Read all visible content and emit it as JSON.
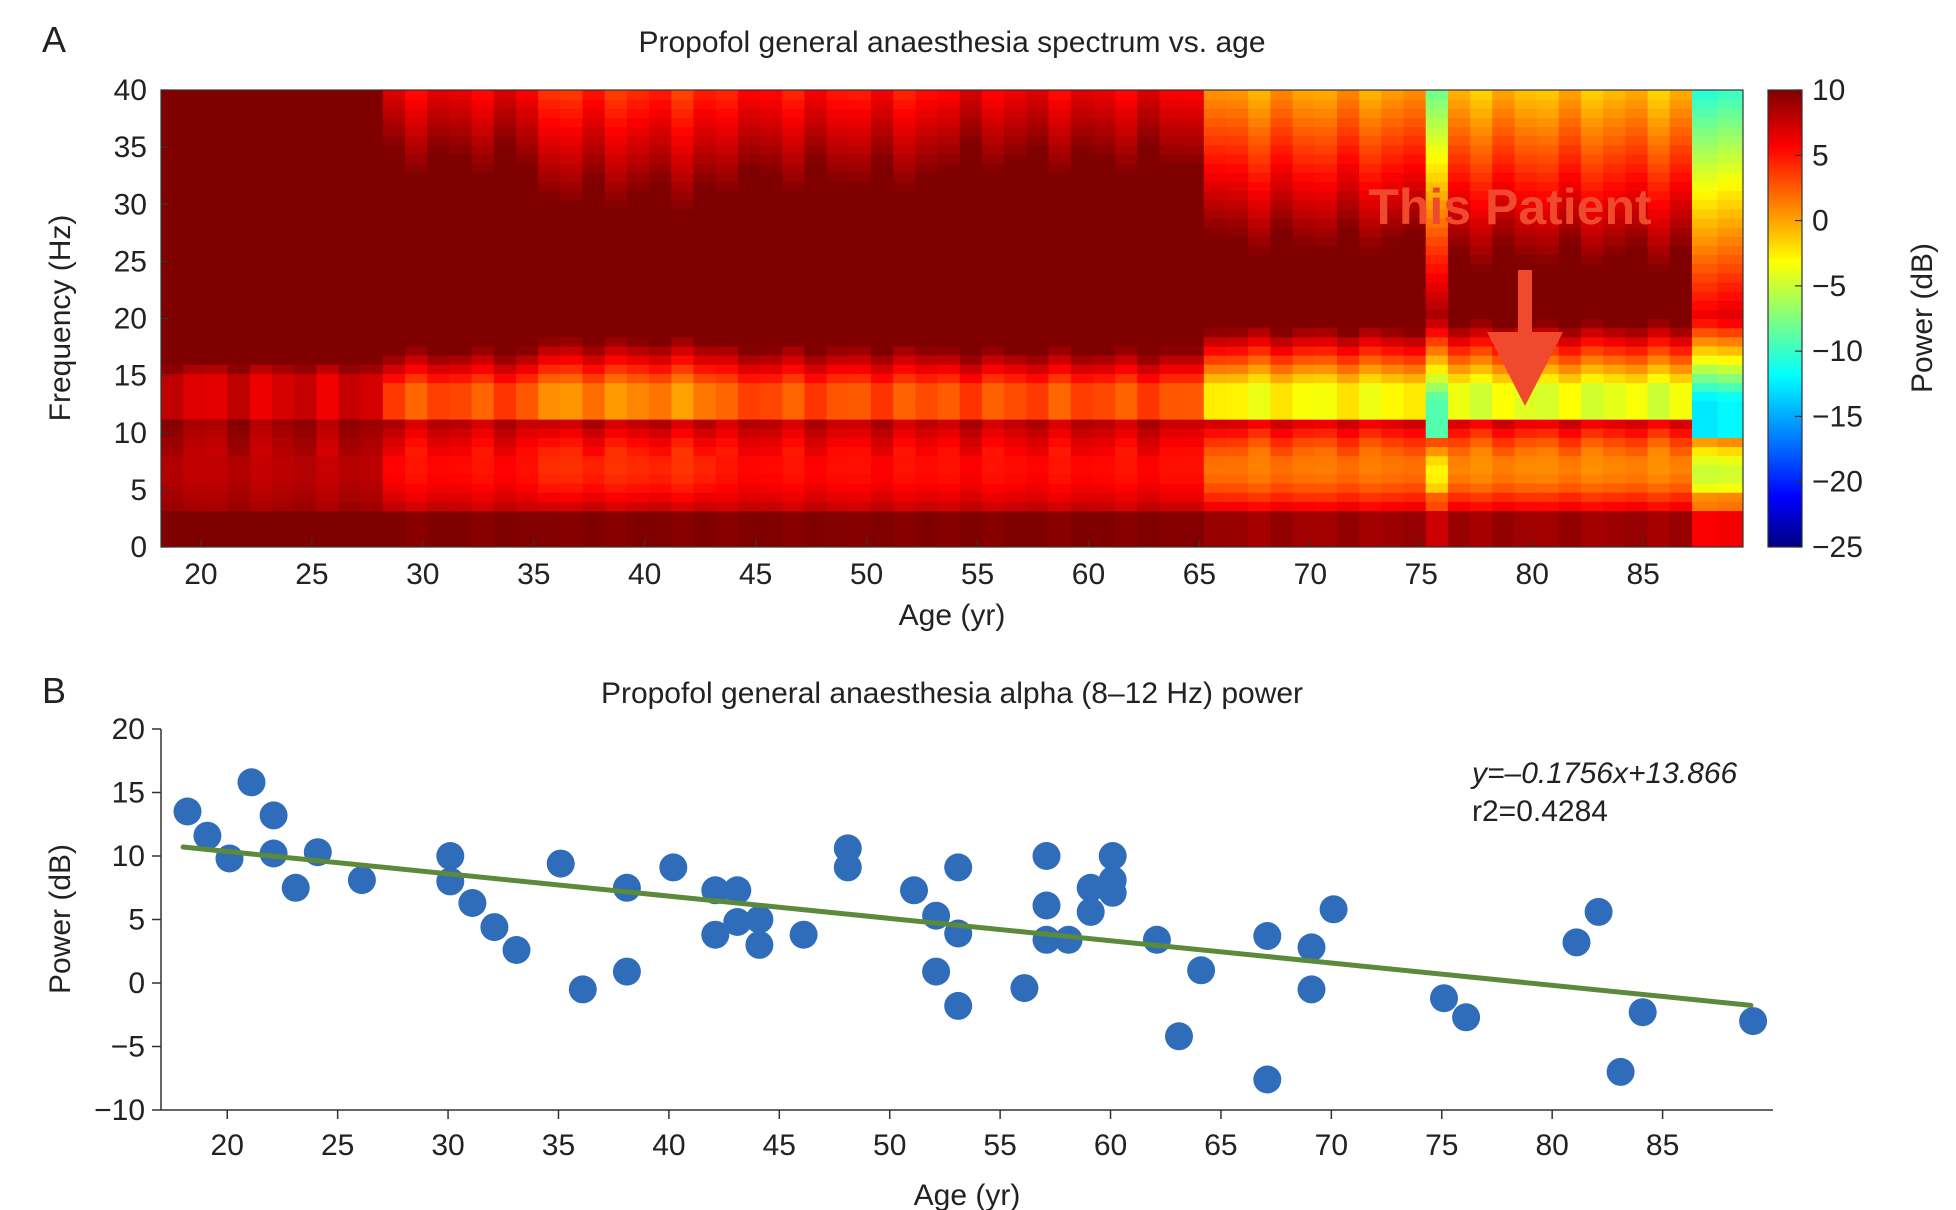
{
  "colors": {
    "patient_annotation": "#f04a2e",
    "scatter_points": "#2f6dbb",
    "fit_line": "#5a8a3a",
    "axis": "#222222"
  },
  "chart_data": [
    {
      "panel": "A",
      "type": "heatmap",
      "title": "Propofol general anaesthesia spectrum vs. age",
      "xlabel": "Age (yr)",
      "ylabel": "Frequency (Hz)",
      "colorbar_label": "Power (dB)",
      "xlim": [
        18.2,
        89.5
      ],
      "ylim": [
        0,
        40
      ],
      "clim": [
        -25,
        10
      ],
      "xticks": [
        20,
        25,
        30,
        35,
        40,
        45,
        50,
        55,
        60,
        65,
        70,
        75,
        80,
        85
      ],
      "yticks": [
        0,
        5,
        10,
        15,
        20,
        25,
        30,
        35,
        40
      ],
      "colorbar_ticks": [
        10,
        5,
        0,
        -5,
        -10,
        -15,
        -20,
        -25
      ],
      "colormap": "jet",
      "annotation": {
        "text": "This Patient",
        "age": 79.5
      },
      "segments": [
        {
          "x0": 18.2,
          "x1": 28.2,
          "low": 9,
          "alpha": 7,
          "alpha_f": 11,
          "alpha_w": 4,
          "top": 27,
          "slope": 0.55,
          "floor": -18
        },
        {
          "x0": 28.2,
          "x1": 35.2,
          "low": 8,
          "alpha": 3,
          "alpha_f": 11,
          "alpha_w": 3,
          "top": 19,
          "slope": 0.65,
          "floor": -20
        },
        {
          "x0": 35.2,
          "x1": 43.2,
          "low": 8,
          "alpha": 1,
          "alpha_f": 11,
          "alpha_w": 3,
          "top": 17,
          "slope": 0.65,
          "floor": -20
        },
        {
          "x0": 43.2,
          "x1": 53.2,
          "low": 8,
          "alpha": 3,
          "alpha_f": 11,
          "alpha_w": 3,
          "top": 18,
          "slope": 0.65,
          "floor": -20
        },
        {
          "x0": 53.2,
          "x1": 65.2,
          "low": 8,
          "alpha": 3,
          "alpha_f": 11,
          "alpha_w": 3,
          "top": 19,
          "slope": 0.65,
          "floor": -20
        },
        {
          "x0": 65.2,
          "x1": 75.2,
          "low": 7,
          "alpha": -3,
          "alpha_f": 11,
          "alpha_w": 3,
          "top": 15,
          "slope": 0.75,
          "floor": -22
        },
        {
          "x0": 75.2,
          "x1": 76.2,
          "low": 5,
          "alpha": -10,
          "alpha_f": 10,
          "alpha_w": 3,
          "top": 8,
          "slope": 0.85,
          "floor": -24
        },
        {
          "x0": 76.2,
          "x1": 87.2,
          "low": 7,
          "alpha": -4,
          "alpha_f": 11,
          "alpha_w": 3,
          "top": 14,
          "slope": 0.75,
          "floor": -22
        },
        {
          "x0": 87.2,
          "x1": 89.5,
          "low": 4,
          "alpha": -12,
          "alpha_f": 10,
          "alpha_w": 3,
          "top": 7,
          "slope": 0.85,
          "floor": -24
        }
      ]
    },
    {
      "panel": "B",
      "type": "scatter",
      "title": "Propofol general anaesthesia alpha (8–12 Hz) power",
      "xlabel": "Age (yr)",
      "ylabel": "Power (dB)",
      "xlim": [
        17,
        90
      ],
      "ylim": [
        -10,
        20
      ],
      "xticks": [
        20,
        25,
        30,
        35,
        40,
        45,
        50,
        55,
        60,
        65,
        70,
        75,
        80,
        85
      ],
      "yticks": [
        20,
        15,
        10,
        5,
        0,
        -5,
        -10
      ],
      "equation": "y=–0.1756x+13.866",
      "r_squared": "r2=0.4284",
      "fit": {
        "slope": -0.1756,
        "intercept": 13.866,
        "x_range": [
          18,
          89
        ]
      },
      "points": [
        [
          18.2,
          13.5
        ],
        [
          19.1,
          11.6
        ],
        [
          20.1,
          9.8
        ],
        [
          21.1,
          15.8
        ],
        [
          22.1,
          13.2
        ],
        [
          22.1,
          10.2
        ],
        [
          23.1,
          7.5
        ],
        [
          24.1,
          10.3
        ],
        [
          26.1,
          8.1
        ],
        [
          30.1,
          10.0
        ],
        [
          30.1,
          8.0
        ],
        [
          31.1,
          6.3
        ],
        [
          32.1,
          4.4
        ],
        [
          33.1,
          2.6
        ],
        [
          35.1,
          9.4
        ],
        [
          36.1,
          -0.5
        ],
        [
          38.1,
          7.5
        ],
        [
          38.1,
          0.9
        ],
        [
          40.2,
          9.1
        ],
        [
          42.1,
          7.3
        ],
        [
          42.1,
          3.8
        ],
        [
          43.1,
          7.3
        ],
        [
          43.1,
          4.8
        ],
        [
          44.1,
          5.0
        ],
        [
          44.1,
          3.0
        ],
        [
          46.1,
          3.8
        ],
        [
          48.1,
          10.6
        ],
        [
          48.1,
          9.1
        ],
        [
          51.1,
          7.3
        ],
        [
          52.1,
          5.3
        ],
        [
          52.1,
          0.9
        ],
        [
          53.1,
          9.1
        ],
        [
          53.1,
          3.9
        ],
        [
          53.1,
          -1.8
        ],
        [
          56.1,
          -0.4
        ],
        [
          57.1,
          10.0
        ],
        [
          57.1,
          6.1
        ],
        [
          57.1,
          3.4
        ],
        [
          58.1,
          3.4
        ],
        [
          59.1,
          7.5
        ],
        [
          59.1,
          5.6
        ],
        [
          60.1,
          10.0
        ],
        [
          60.1,
          8.1
        ],
        [
          60.1,
          7.1
        ],
        [
          62.1,
          3.4
        ],
        [
          63.1,
          -4.2
        ],
        [
          64.1,
          1.0
        ],
        [
          67.1,
          3.7
        ],
        [
          67.1,
          -7.6
        ],
        [
          69.1,
          2.8
        ],
        [
          69.1,
          -0.5
        ],
        [
          70.1,
          5.8
        ],
        [
          75.1,
          -1.2
        ],
        [
          76.1,
          -2.7
        ],
        [
          81.1,
          3.2
        ],
        [
          82.1,
          5.6
        ],
        [
          83.1,
          -7.0
        ],
        [
          84.1,
          -2.3
        ],
        [
          89.1,
          -3.0
        ]
      ]
    }
  ]
}
